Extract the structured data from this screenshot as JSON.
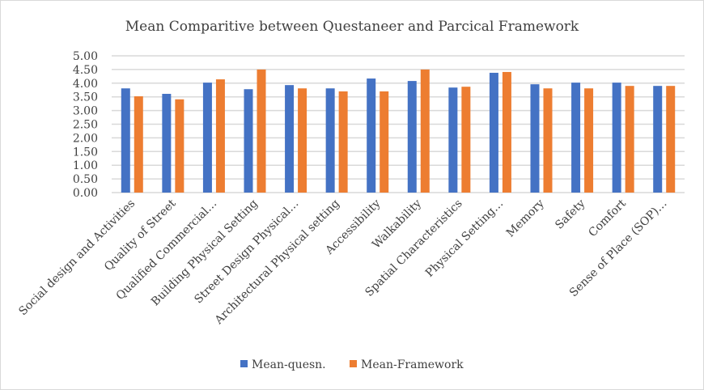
{
  "chart_data": {
    "type": "bar",
    "title": "Mean Comparitive between Questaneer and Parcical Framework",
    "xlabel": "",
    "ylabel": "",
    "ylim": [
      0,
      5
    ],
    "yticks": [
      "0.00",
      "0.50",
      "1.00",
      "1.50",
      "2.00",
      "2.50",
      "3.00",
      "3.50",
      "4.00",
      "4.50",
      "5.00"
    ],
    "grid": true,
    "legend_position": "bottom",
    "categories": [
      "Social design and Activities",
      "Quality of Street",
      "Qualified Commercial…",
      "Building Physical Setting",
      "Street Design Physical…",
      "Architectural Physical setting",
      "Accessibility",
      "Walkability",
      "Spatial Characteristics",
      "Physical Setting…",
      "Memory",
      "Safety",
      "Comfort",
      "Sense of Place (SOP)…"
    ],
    "series": [
      {
        "name": "Mean-quesn.",
        "color": "#4472C4",
        "values": [
          3.81,
          3.61,
          4.02,
          3.78,
          3.93,
          3.81,
          4.17,
          4.08,
          3.84,
          4.38,
          3.96,
          4.02,
          4.02,
          3.9
        ]
      },
      {
        "name": "Mean-Framework",
        "color": "#ED7D31",
        "values": [
          3.52,
          3.41,
          4.14,
          4.5,
          3.81,
          3.7,
          3.7,
          4.5,
          3.87,
          4.41,
          3.81,
          3.81,
          3.9,
          3.9
        ]
      }
    ]
  }
}
